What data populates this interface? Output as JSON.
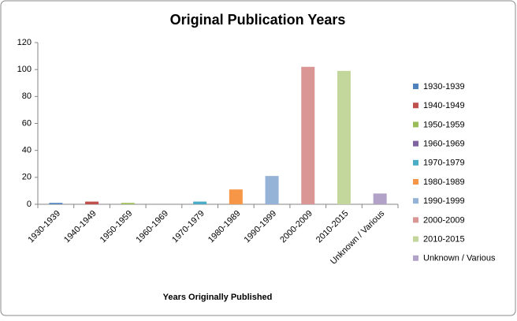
{
  "chart_data": {
    "type": "bar",
    "title": "Original Publication Years",
    "x_label": "Years Originally Published",
    "categories": [
      "1930-1939",
      "1940-1949",
      "1950-1959",
      "1960-1969",
      "1970-1979",
      "1980-1989",
      "1990-1999",
      "2000-2009",
      "2010-2015",
      "Unknown / Various"
    ],
    "values": [
      1,
      2,
      1,
      0,
      2,
      11,
      21,
      102,
      99,
      8
    ],
    "colors": [
      "#4F81BD",
      "#C0504D",
      "#9BBB59",
      "#8064A2",
      "#4BACC6",
      "#F79646",
      "#95B3D7",
      "#D99694",
      "#C3D69B",
      "#B3A2C7"
    ],
    "ylim": [
      0,
      120
    ],
    "yticks": [
      0,
      20,
      40,
      60,
      80,
      100,
      120
    ],
    "grid": false,
    "legend": "right"
  }
}
